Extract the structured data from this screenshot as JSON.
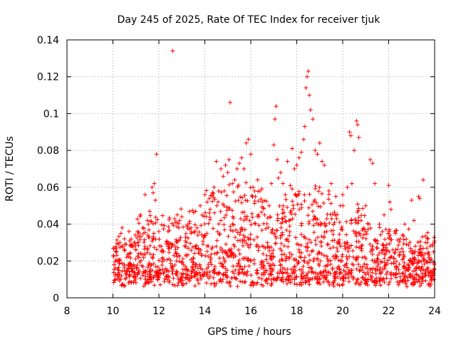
{
  "chart_data": {
    "type": "scatter",
    "title": "Day 245 of 2025, Rate Of TEC Index for receiver tjuk",
    "xlabel": "GPS time / hours",
    "ylabel": "ROTI / TECUs",
    "xlim": [
      8,
      24
    ],
    "ylim": [
      0,
      0.14
    ],
    "xticks": [
      8,
      10,
      12,
      14,
      16,
      18,
      20,
      22,
      24
    ],
    "xtick_labels": [
      "8",
      "10",
      "12",
      "14",
      "16",
      "18",
      "20",
      "22",
      "24"
    ],
    "yticks": [
      0,
      0.02,
      0.04,
      0.06,
      0.08,
      0.1,
      0.12,
      0.14
    ],
    "ytick_labels": [
      "0",
      "0.02",
      "0.04",
      "0.06",
      "0.08",
      "0.1",
      "0.12",
      "0.14"
    ],
    "grid": true,
    "marker": "plus",
    "color": "#ff0000",
    "data_range_hours": [
      10,
      24
    ],
    "series": [
      {
        "name": "ROTI",
        "points": [
          [
            10.05,
            0.018
          ],
          [
            10.1,
            0.012
          ],
          [
            10.15,
            0.025
          ],
          [
            10.2,
            0.02
          ],
          [
            10.25,
            0.015
          ],
          [
            10.3,
            0.03
          ],
          [
            10.35,
            0.035
          ],
          [
            10.4,
            0.038
          ],
          [
            10.5,
            0.032
          ],
          [
            10.6,
            0.022
          ],
          [
            10.7,
            0.036
          ],
          [
            10.8,
            0.028
          ],
          [
            10.9,
            0.018
          ],
          [
            11.0,
            0.026
          ],
          [
            11.1,
            0.03
          ],
          [
            11.2,
            0.045
          ],
          [
            11.3,
            0.038
          ],
          [
            11.4,
            0.056
          ],
          [
            11.5,
            0.042
          ],
          [
            11.6,
            0.047
          ],
          [
            11.7,
            0.06
          ],
          [
            11.75,
            0.057
          ],
          [
            11.8,
            0.062
          ],
          [
            11.85,
            0.053
          ],
          [
            11.9,
            0.078
          ],
          [
            12.0,
            0.036
          ],
          [
            12.1,
            0.028
          ],
          [
            12.2,
            0.025
          ],
          [
            12.4,
            0.036
          ],
          [
            12.6,
            0.134
          ],
          [
            12.7,
            0.028
          ],
          [
            12.8,
            0.045
          ],
          [
            12.9,
            0.042
          ],
          [
            13.0,
            0.044
          ],
          [
            13.2,
            0.03
          ],
          [
            13.4,
            0.038
          ],
          [
            13.6,
            0.047
          ],
          [
            13.8,
            0.05
          ],
          [
            14.0,
            0.056
          ],
          [
            14.1,
            0.052
          ],
          [
            14.2,
            0.046
          ],
          [
            14.4,
            0.06
          ],
          [
            14.5,
            0.074
          ],
          [
            14.6,
            0.058
          ],
          [
            14.7,
            0.07
          ],
          [
            14.8,
            0.066
          ],
          [
            14.9,
            0.072
          ],
          [
            15.0,
            0.068
          ],
          [
            15.05,
            0.075
          ],
          [
            15.1,
            0.106
          ],
          [
            15.2,
            0.062
          ],
          [
            15.3,
            0.064
          ],
          [
            15.4,
            0.07
          ],
          [
            15.5,
            0.073
          ],
          [
            15.6,
            0.076
          ],
          [
            15.7,
            0.07
          ],
          [
            15.8,
            0.084
          ],
          [
            15.9,
            0.086
          ],
          [
            16.0,
            0.078
          ],
          [
            16.1,
            0.06
          ],
          [
            16.2,
            0.055
          ],
          [
            16.3,
            0.064
          ],
          [
            16.4,
            0.058
          ],
          [
            16.5,
            0.052
          ],
          [
            16.6,
            0.045
          ],
          [
            16.8,
            0.05
          ],
          [
            16.9,
            0.062
          ],
          [
            17.0,
            0.083
          ],
          [
            17.05,
            0.097
          ],
          [
            17.1,
            0.104
          ],
          [
            17.15,
            0.075
          ],
          [
            17.2,
            0.065
          ],
          [
            17.3,
            0.068
          ],
          [
            17.4,
            0.062
          ],
          [
            17.5,
            0.056
          ],
          [
            17.6,
            0.074
          ],
          [
            17.8,
            0.081
          ],
          [
            17.9,
            0.07
          ],
          [
            18.0,
            0.072
          ],
          [
            18.1,
            0.076
          ],
          [
            18.2,
            0.079
          ],
          [
            18.3,
            0.086
          ],
          [
            18.35,
            0.093
          ],
          [
            18.4,
            0.114
          ],
          [
            18.45,
            0.12
          ],
          [
            18.5,
            0.123
          ],
          [
            18.55,
            0.11
          ],
          [
            18.6,
            0.102
          ],
          [
            18.7,
            0.097
          ],
          [
            18.8,
            0.08
          ],
          [
            18.9,
            0.078
          ],
          [
            19.0,
            0.084
          ],
          [
            19.1,
            0.074
          ],
          [
            19.2,
            0.072
          ],
          [
            19.4,
            0.058
          ],
          [
            19.5,
            0.062
          ],
          [
            19.7,
            0.055
          ],
          [
            19.9,
            0.05
          ],
          [
            20.0,
            0.056
          ],
          [
            20.2,
            0.06
          ],
          [
            20.3,
            0.09
          ],
          [
            20.35,
            0.088
          ],
          [
            20.4,
            0.062
          ],
          [
            20.5,
            0.08
          ],
          [
            20.6,
            0.096
          ],
          [
            20.65,
            0.094
          ],
          [
            20.7,
            0.087
          ],
          [
            20.8,
            0.042
          ],
          [
            21.0,
            0.05
          ],
          [
            21.2,
            0.075
          ],
          [
            21.3,
            0.073
          ],
          [
            21.4,
            0.062
          ],
          [
            21.6,
            0.04
          ],
          [
            21.8,
            0.045
          ],
          [
            22.0,
            0.061
          ],
          [
            22.05,
            0.052
          ],
          [
            22.1,
            0.048
          ],
          [
            22.3,
            0.035
          ],
          [
            22.5,
            0.032
          ],
          [
            22.7,
            0.04
          ],
          [
            23.0,
            0.053
          ],
          [
            23.1,
            0.042
          ],
          [
            23.3,
            0.055
          ],
          [
            23.35,
            0.054
          ],
          [
            23.5,
            0.064
          ],
          [
            23.6,
            0.03
          ],
          [
            23.8,
            0.028
          ],
          [
            23.95,
            0.025
          ]
        ]
      }
    ]
  }
}
